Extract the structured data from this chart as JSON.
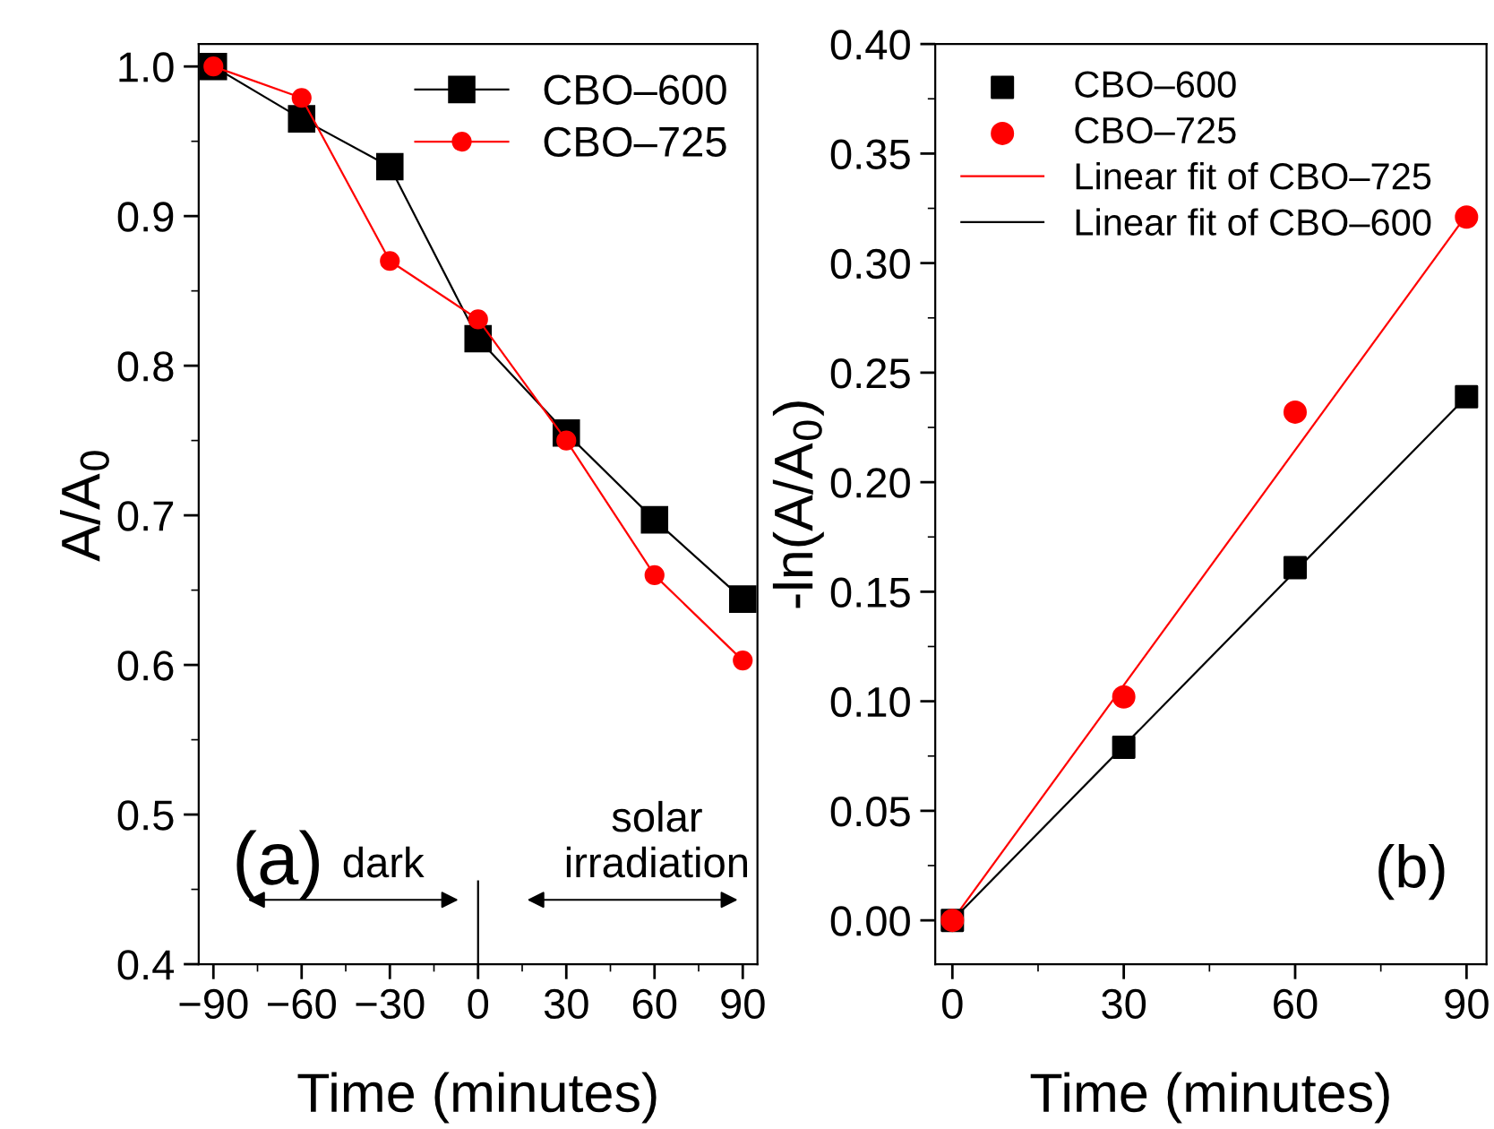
{
  "chart_data": [
    {
      "type": "line",
      "xlabel": "Time (minutes)",
      "ylabel": "A/A$_{0}$",
      "x": [
        -90,
        -60,
        -30,
        0,
        30,
        60,
        90
      ],
      "series": [
        {
          "name": "CBO–600",
          "color": "#000000",
          "marker": "square",
          "values": [
            1.0,
            0.965,
            0.933,
            0.818,
            0.755,
            0.697,
            0.644
          ]
        },
        {
          "name": "CBO–725",
          "color": "#ff0000",
          "marker": "circle",
          "values": [
            1.0,
            0.979,
            0.87,
            0.831,
            0.75,
            0.66,
            0.603
          ]
        }
      ],
      "xlim": [
        -95,
        95
      ],
      "xticks": [
        {
          "value": -90,
          "label": "−90"
        },
        {
          "value": -60,
          "label": "−60"
        },
        {
          "value": -30,
          "label": "−30"
        },
        0,
        30,
        60,
        90
      ],
      "ylim": [
        0.4,
        1.015
      ],
      "yticks": [
        0.4,
        0.5,
        0.6,
        0.7,
        0.8,
        0.9,
        {
          "value": 1.0,
          "label": "1.0"
        }
      ],
      "ref_lines": [
        {
          "axis": "x",
          "value": 0,
          "color": "#000000"
        }
      ],
      "annotations": [
        "(a)",
        "dark",
        "solar\nirradiation"
      ],
      "grid": false,
      "legend": "top right"
    },
    {
      "type": "scatter",
      "xlabel": "Time (minutes)",
      "ylabel": "-ln(A/A$_{0}$)",
      "series": [
        {
          "name": "CBO–600",
          "color": "#000000",
          "marker": "square",
          "x": [
            0,
            30,
            60,
            90
          ],
          "values": [
            0,
            0.079,
            0.161,
            0.239
          ]
        },
        {
          "name": "CBO–725",
          "color": "#ff0000",
          "marker": "circle",
          "x": [
            0,
            30,
            60,
            90
          ],
          "values": [
            0,
            0.102,
            0.232,
            0.321
          ]
        },
        {
          "name": "Linear fit of CBO–725",
          "type": "line",
          "color": "#ff0000",
          "x": [
            0,
            90
          ],
          "values": [
            0,
            0.322
          ]
        },
        {
          "name": "Linear fit of CBO–600",
          "type": "line",
          "color": "#000000",
          "x": [
            0,
            90
          ],
          "values": [
            0,
            0.239
          ]
        }
      ],
      "xlim": [
        -3,
        93.5
      ],
      "xticks": [
        0,
        30,
        60,
        90
      ],
      "ylim": [
        -0.02,
        0.4
      ],
      "yticks": [
        {
          "value": 0,
          "label": "0.00"
        },
        0.05,
        {
          "value": 0.1,
          "label": "0.10"
        },
        0.15,
        {
          "value": 0.2,
          "label": "0.20"
        },
        0.25,
        {
          "value": 0.3,
          "label": "0.30"
        },
        0.35,
        {
          "value": 0.4,
          "label": "0.40"
        }
      ],
      "annotations": [
        "(b)"
      ],
      "grid": false,
      "legend": "top left"
    }
  ]
}
